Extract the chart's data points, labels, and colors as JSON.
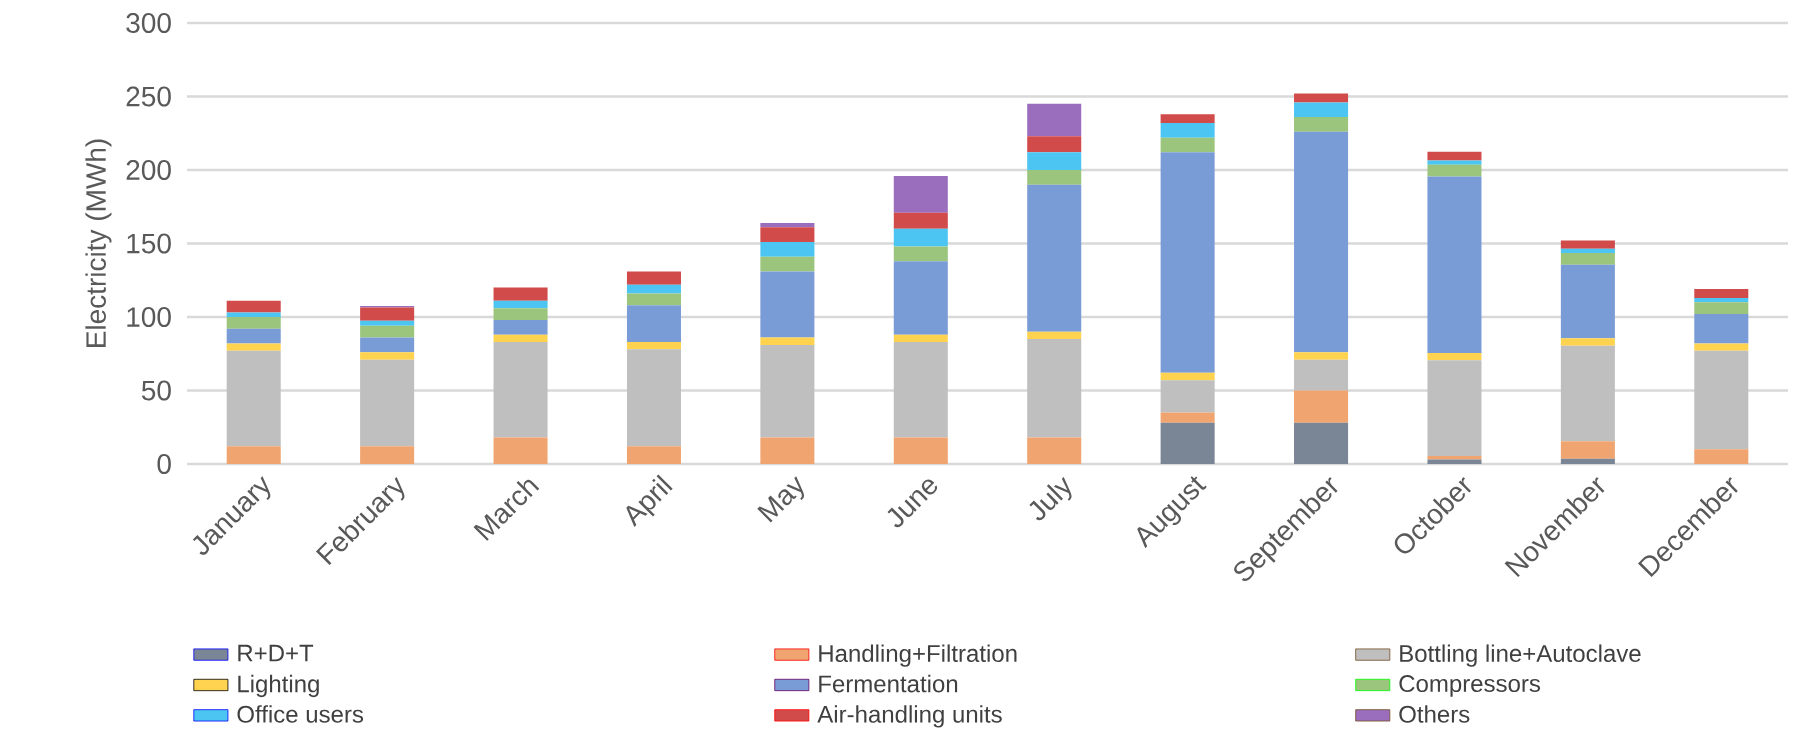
{
  "chart_data": {
    "type": "bar",
    "stacked": true,
    "ylabel": "Electricity (MWh)",
    "categories": [
      "January",
      "February",
      "March",
      "April",
      "May",
      "June",
      "July",
      "August",
      "September",
      "October",
      "November",
      "December"
    ],
    "ylim": [
      0,
      300
    ],
    "yticks": [
      0,
      50,
      100,
      150,
      200,
      250,
      300
    ],
    "grid": "y",
    "legend": "bottom",
    "series": [
      {
        "name": "R+D+T",
        "color": "#7a8595",
        "values": [
          0,
          0,
          0,
          0,
          0,
          0,
          0,
          28,
          28,
          3,
          3.5,
          0
        ]
      },
      {
        "name": "Handling+Filtration",
        "color": "#f0a470",
        "values": [
          12,
          12,
          18,
          12,
          18,
          18,
          18,
          7,
          22,
          2.5,
          12,
          10
        ]
      },
      {
        "name": "Bottling line+Autoclave",
        "color": "#bfbfbf",
        "values": [
          65,
          59,
          65,
          66,
          63,
          65,
          67,
          22,
          21,
          65,
          65,
          67
        ]
      },
      {
        "name": "Lighting",
        "color": "#ffd34f",
        "values": [
          5,
          5,
          5,
          5,
          5,
          5,
          5,
          5,
          5,
          5,
          5,
          5
        ]
      },
      {
        "name": "Fermentation",
        "color": "#7a9cd6",
        "values": [
          10,
          10,
          10,
          25,
          45,
          50,
          100,
          150,
          150,
          120,
          50,
          20
        ]
      },
      {
        "name": "Compressors",
        "color": "#9bc57c",
        "values": [
          8,
          8,
          8,
          8,
          10,
          10,
          10,
          10,
          10,
          8,
          8,
          8
        ]
      },
      {
        "name": "Office users",
        "color": "#4dc5f2",
        "values": [
          3,
          3.5,
          5,
          6,
          10,
          12,
          12,
          10,
          10,
          3,
          3,
          3
        ]
      },
      {
        "name": "Air-handling units",
        "color": "#d24b4b",
        "values": [
          8,
          9,
          9,
          9,
          10,
          11,
          11,
          6,
          6,
          6,
          5.5,
          6
        ]
      },
      {
        "name": "Others",
        "color": "#9a6ebc",
        "values": [
          0,
          1,
          0,
          0,
          3,
          25,
          22,
          0,
          0,
          0,
          0,
          0
        ]
      }
    ]
  }
}
